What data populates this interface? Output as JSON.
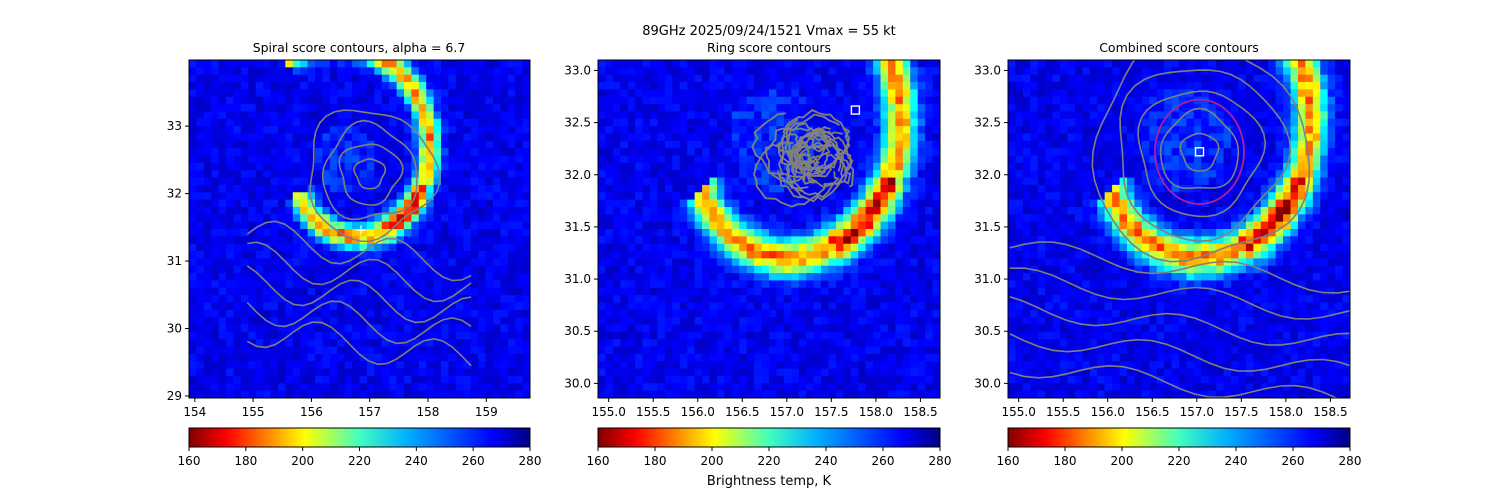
{
  "figure": {
    "suptitle": "89GHz  2025/09/24/1521    Vmax = 55 kt",
    "colorbar_label": "Brightness temp, K"
  },
  "chart_data": [
    {
      "type": "heatmap",
      "title": "Spiral score contours, alpha =  6.7",
      "xlim": [
        153.9,
        159.75
      ],
      "ylim": [
        28.97,
        33.98
      ],
      "x_ticks": [
        154,
        155,
        156,
        157,
        158,
        159
      ],
      "y_ticks": [
        29,
        30,
        31,
        32,
        33
      ],
      "x_tick_labels": [
        "154",
        "155",
        "156",
        "157",
        "158",
        "159"
      ],
      "y_tick_labels": [
        "29",
        "30",
        "31",
        "32",
        "33"
      ],
      "center_marker": {
        "symbol": "+",
        "x": 156.85,
        "y": 31.47,
        "color": "#ffffff"
      },
      "contour_center": {
        "x": 157.0,
        "y": 32.3
      },
      "contour_color": "#808080",
      "colorbar": {
        "min": 160,
        "max": 280,
        "ticks": [
          160,
          180,
          200,
          220,
          240,
          260,
          280
        ],
        "tick_labels": [
          "160",
          "180",
          "200",
          "220",
          "240",
          "260",
          "280"
        ],
        "colormap": "jet_r"
      }
    },
    {
      "type": "heatmap",
      "title": "Ring score contours",
      "xlim": [
        154.88,
        158.72
      ],
      "ylim": [
        29.86,
        33.1
      ],
      "x_ticks": [
        155.0,
        155.5,
        156.0,
        156.5,
        157.0,
        157.5,
        158.0,
        158.5
      ],
      "y_ticks": [
        30.0,
        30.5,
        31.0,
        31.5,
        32.0,
        32.5,
        33.0
      ],
      "x_tick_labels": [
        "155.0",
        "155.5",
        "156.0",
        "156.5",
        "157.0",
        "157.5",
        "158.0",
        "158.5"
      ],
      "y_tick_labels": [
        "30.0",
        "30.5",
        "31.0",
        "31.5",
        "32.0",
        "32.5",
        "33.0"
      ],
      "square_marker": {
        "x": 157.77,
        "y": 32.62,
        "color": "#ffffff"
      },
      "contour_region": {
        "x": 157.25,
        "y": 32.2,
        "radius_deg": 0.6
      },
      "contour_color": "#808080",
      "colorbar": {
        "min": 160,
        "max": 280,
        "ticks": [
          160,
          180,
          200,
          220,
          240,
          260,
          280
        ],
        "tick_labels": [
          "160",
          "180",
          "200",
          "220",
          "240",
          "260",
          "280"
        ],
        "colormap": "jet_r"
      }
    },
    {
      "type": "heatmap",
      "title": "Combined score contours",
      "xlim": [
        154.88,
        158.72
      ],
      "ylim": [
        29.86,
        33.1
      ],
      "x_ticks": [
        155.0,
        155.5,
        156.0,
        156.5,
        157.0,
        157.5,
        158.0,
        158.5
      ],
      "y_ticks": [
        30.0,
        30.5,
        31.0,
        31.5,
        32.0,
        32.5,
        33.0
      ],
      "x_tick_labels": [
        "155.0",
        "155.5",
        "156.0",
        "156.5",
        "157.0",
        "157.5",
        "158.0",
        "158.5"
      ],
      "y_tick_labels": [
        "30.0",
        "30.5",
        "31.0",
        "31.5",
        "32.0",
        "32.5",
        "33.0"
      ],
      "square_marker": {
        "x": 157.03,
        "y": 32.22,
        "color": "#ffffff"
      },
      "circle": {
        "x": 157.03,
        "y": 32.22,
        "radius_deg": 0.5,
        "color": "#b0209a"
      },
      "contour_center": {
        "x": 157.03,
        "y": 32.22
      },
      "contour_color": "#808080",
      "colorbar": {
        "min": 160,
        "max": 280,
        "ticks": [
          160,
          180,
          200,
          220,
          240,
          260,
          280
        ],
        "tick_labels": [
          "160",
          "180",
          "200",
          "220",
          "240",
          "260",
          "280"
        ],
        "colormap": "jet_r"
      }
    }
  ]
}
